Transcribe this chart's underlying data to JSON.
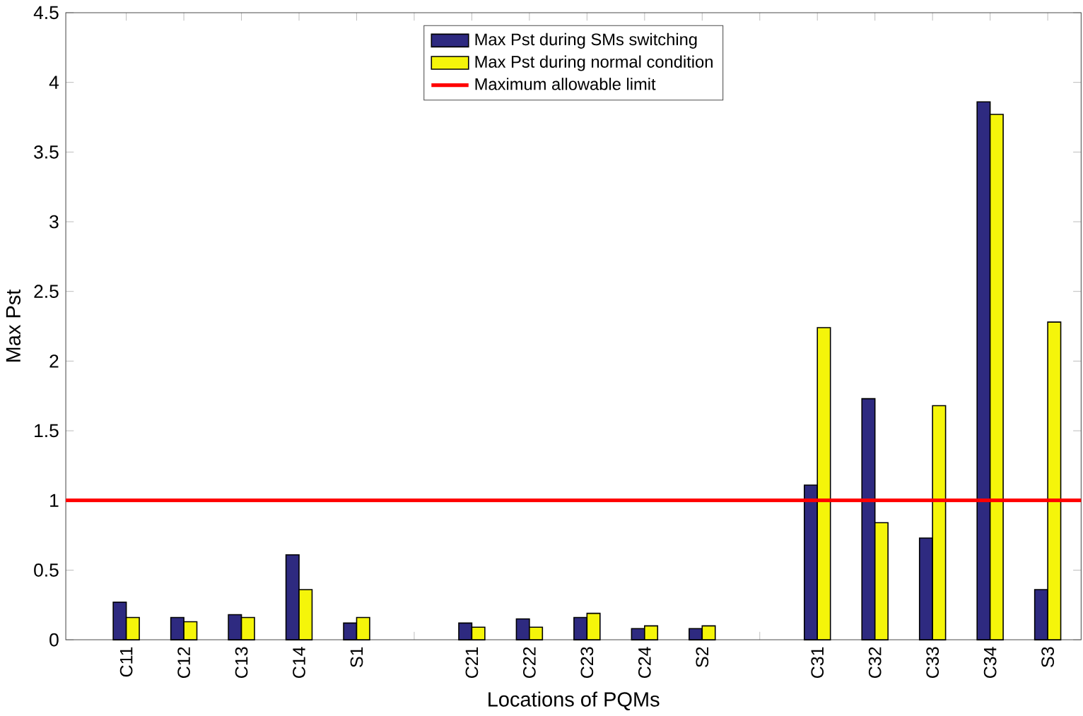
{
  "chart_data": {
    "type": "bar",
    "xlabel": "Locations of PQMs",
    "ylabel": "Max Pst",
    "categories": [
      "C11",
      "C12",
      "C13",
      "C14",
      "S1",
      null,
      "C21",
      "C22",
      "C23",
      "C24",
      "S2",
      null,
      "C31",
      "C32",
      "C33",
      "C34",
      "S3"
    ],
    "series": [
      {
        "name": "Max Pst during SMs switching",
        "color": "#2e2a80",
        "values": [
          0.27,
          0.16,
          0.18,
          0.61,
          0.12,
          null,
          0.12,
          0.15,
          0.16,
          0.08,
          0.08,
          null,
          1.11,
          1.73,
          0.73,
          3.86,
          0.36
        ]
      },
      {
        "name": "Max Pst during normal condition",
        "color": "#f5f50a",
        "values": [
          0.16,
          0.13,
          0.16,
          0.36,
          0.16,
          null,
          0.09,
          0.09,
          0.19,
          0.1,
          0.1,
          null,
          2.24,
          0.84,
          1.68,
          3.77,
          2.28
        ]
      }
    ],
    "ref_lines": [
      {
        "axis": "y",
        "value": 1,
        "label": "Maximum allowable limit",
        "color": "#ff0000"
      }
    ],
    "ylim": [
      0,
      4.5
    ],
    "yticks": [
      0,
      0.5,
      1,
      1.5,
      2,
      2.5,
      3,
      3.5,
      4,
      4.5
    ],
    "grid": false,
    "legend": "top"
  }
}
